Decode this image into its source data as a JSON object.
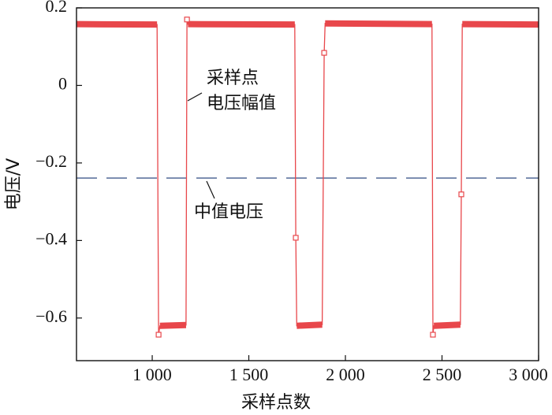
{
  "chart_data": {
    "type": "line",
    "xlabel": "采样点数",
    "ylabel": "电压/V",
    "series": [
      {
        "name": "采样点电压幅值",
        "color": "#e8474b",
        "x": [
          608,
          1025,
          1033,
          1040,
          1175,
          1180,
          1185,
          1738,
          1743,
          1748,
          1880,
          1890,
          1895,
          2448,
          2453,
          2458,
          2595,
          2600,
          2605,
          3000
        ],
        "values": [
          0.158,
          0.157,
          -0.643,
          -0.62,
          -0.618,
          0.17,
          0.158,
          0.157,
          -0.393,
          -0.62,
          -0.617,
          0.084,
          0.16,
          0.158,
          -0.643,
          -0.62,
          -0.617,
          -0.281,
          0.158,
          0.157
        ]
      }
    ],
    "markers": {
      "x": [
        1033,
        1180,
        1743,
        1890,
        2453,
        2600
      ],
      "values": [
        -0.643,
        0.17,
        -0.393,
        0.084,
        -0.643,
        -0.281
      ]
    },
    "median": {
      "value": -0.239,
      "color": "#6b7fa6"
    },
    "annotations": [
      {
        "text": "采样点"
      },
      {
        "text": "电压幅值"
      },
      {
        "text": "中值电压"
      }
    ],
    "xlim": [
      608,
      3000
    ],
    "xticks": [
      {
        "value": 1000,
        "label": "1 000"
      },
      {
        "value": 1500,
        "label": "1 500"
      },
      {
        "value": 2000,
        "label": "2 000"
      },
      {
        "value": 2500,
        "label": "2 500"
      },
      {
        "value": 3000,
        "label": "3 000"
      }
    ],
    "ylim": [
      -0.71,
      0.2
    ],
    "yticks": [
      0.2,
      0,
      {
        "value": -0.2,
        "label": "−0.2"
      },
      {
        "value": -0.4,
        "label": "−0.4"
      },
      {
        "value": -0.6,
        "label": "−0.6"
      }
    ]
  }
}
